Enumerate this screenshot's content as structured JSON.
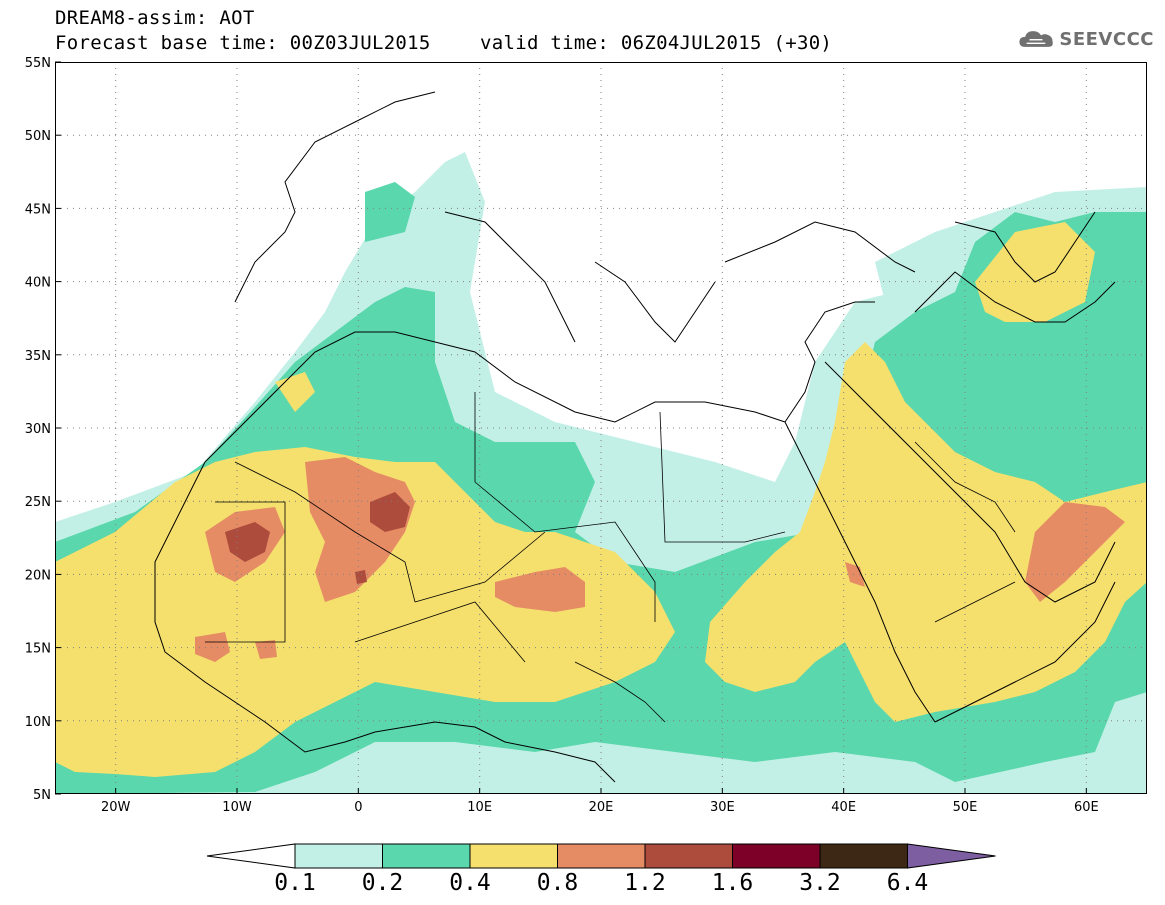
{
  "header": {
    "line1": "DREAM8-assim: AOT",
    "base_time": "Forecast base time: 00Z03JUL2015",
    "valid_time": "valid time: 06Z04JUL2015 (+30)",
    "logo_text": "SEEVCCC",
    "logo_icon": "cloud-icon"
  },
  "map": {
    "lon_range": [
      -25,
      65
    ],
    "lat_range": [
      5,
      55
    ],
    "lat_labels": [
      {
        "value": 55,
        "text": "55N"
      },
      {
        "value": 50,
        "text": "50N"
      },
      {
        "value": 45,
        "text": "45N"
      },
      {
        "value": 40,
        "text": "40N"
      },
      {
        "value": 35,
        "text": "35N"
      },
      {
        "value": 30,
        "text": "30N"
      },
      {
        "value": 25,
        "text": "25N"
      },
      {
        "value": 20,
        "text": "20N"
      },
      {
        "value": 15,
        "text": "15N"
      },
      {
        "value": 10,
        "text": "10N"
      },
      {
        "value": 5,
        "text": "5N"
      }
    ],
    "lon_labels": [
      {
        "value": -20,
        "text": "20W"
      },
      {
        "value": -10,
        "text": "10W"
      },
      {
        "value": 0,
        "text": "0"
      },
      {
        "value": 10,
        "text": "10E"
      },
      {
        "value": 20,
        "text": "20E"
      },
      {
        "value": 30,
        "text": "30E"
      },
      {
        "value": 40,
        "text": "40E"
      },
      {
        "value": 50,
        "text": "50E"
      },
      {
        "value": 60,
        "text": "60E"
      }
    ],
    "grid": "dotted",
    "coastlines": true
  },
  "colorbar": {
    "ticks": [
      "0.1",
      "0.2",
      "0.4",
      "0.8",
      "1.2",
      "1.6",
      "3.2",
      "6.4"
    ],
    "colors": [
      "#ffffff",
      "#c3f0e6",
      "#5ad7ac",
      "#f5e06e",
      "#e58c64",
      "#ad4b3c",
      "#7d0028",
      "#3c2814",
      "#7d5ea0"
    ],
    "extend": "both"
  },
  "aot_levels": {
    "level_0.1": "#c3f0e6",
    "level_0.2": "#5ad7ac",
    "level_0.4": "#f5e06e",
    "level_0.8": "#e58c64",
    "level_1.2": "#ad4b3c"
  }
}
